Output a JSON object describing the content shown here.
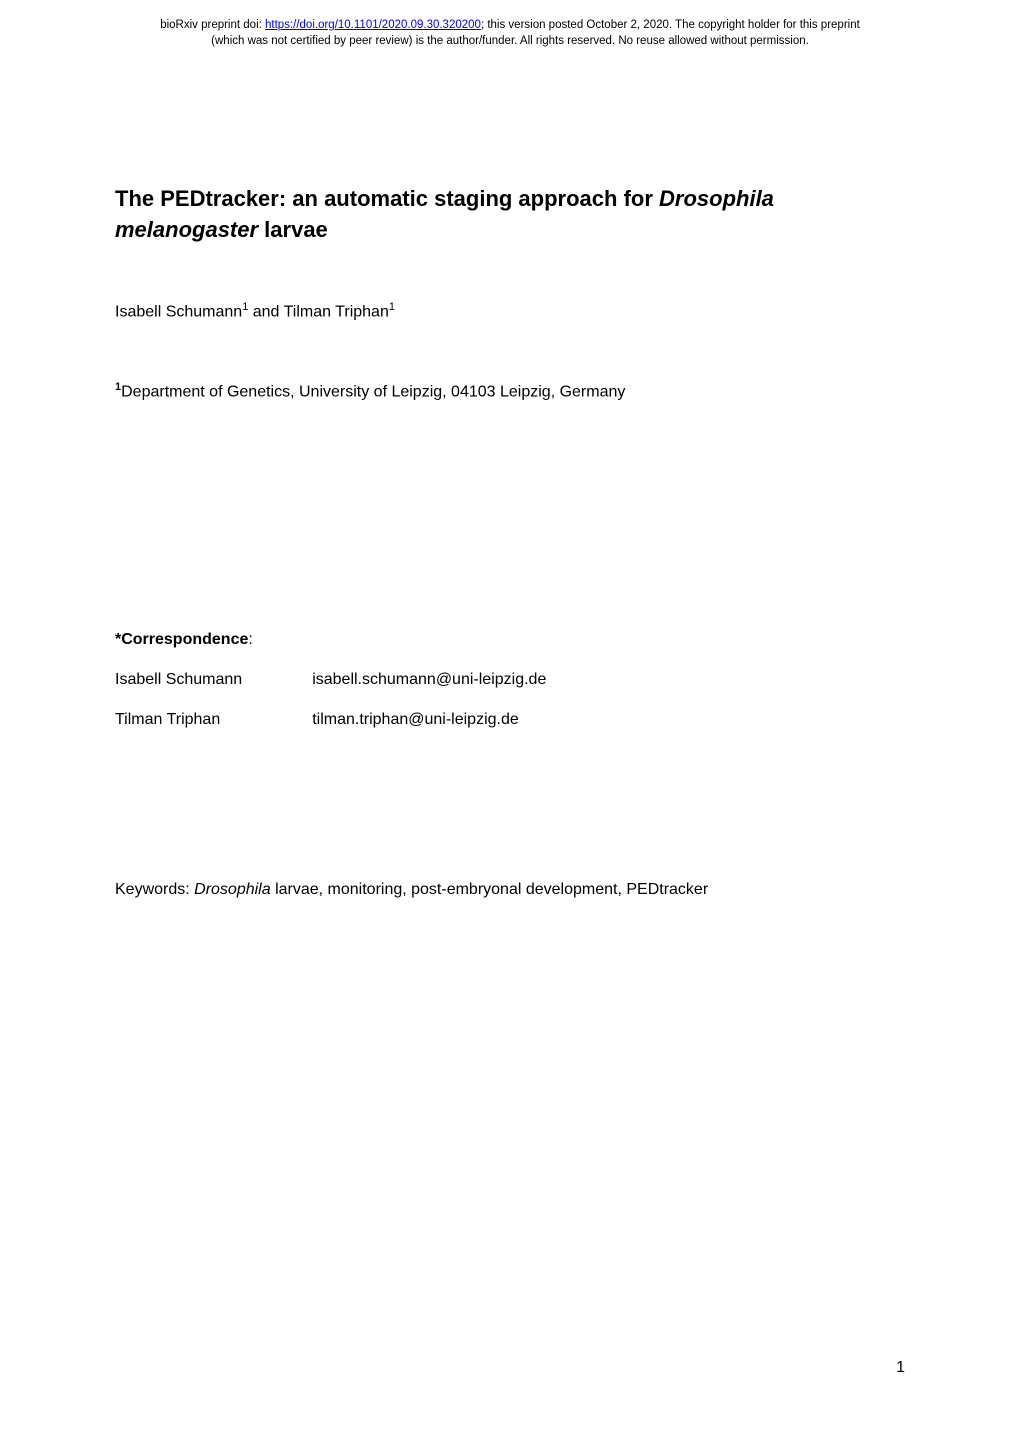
{
  "preprint_header": {
    "prefix": "bioRxiv preprint doi: ",
    "doi_url": "https://doi.org/10.1101/2020.09.30.320200",
    "suffix_line1": "; this version posted October 2, 2020. The copyright holder for this preprint",
    "line2": "(which was not certified by peer review) is the author/funder. All rights reserved. No reuse allowed without permission."
  },
  "title": {
    "part1": "The PEDtracker: an automatic staging approach for ",
    "italic_part": "Drosophila melanogaster",
    "part2": " larvae"
  },
  "authors": {
    "author1_name": "Isabell Schumann",
    "author1_sup": "1",
    "conjunction": " and ",
    "author2_name": "Tilman Triphan",
    "author2_sup": "1"
  },
  "affiliation": {
    "sup": "1",
    "text": "Department of Genetics, University of Leipzig, 04103 Leipzig, Germany"
  },
  "correspondence": {
    "label": "*Correspondence",
    "colon": ":",
    "rows": [
      {
        "name": "Isabell Schumann",
        "email": "isabell.schumann@uni-leipzig.de"
      },
      {
        "name": "Tilman Triphan",
        "email": "tilman.triphan@uni-leipzig.de"
      }
    ]
  },
  "keywords": {
    "prefix": "Keywords: ",
    "italic": "Drosophila",
    "suffix": " larvae, monitoring, post-embryonal development, PEDtracker"
  },
  "page_number": "1",
  "colors": {
    "background": "#ffffff",
    "text": "#000000",
    "link": "#0000ee"
  },
  "typography": {
    "body_font": "Arial, Helvetica, sans-serif",
    "title_fontsize": 22,
    "body_fontsize": 16,
    "header_fontsize": 11.5,
    "sup_fontsize": 11
  }
}
